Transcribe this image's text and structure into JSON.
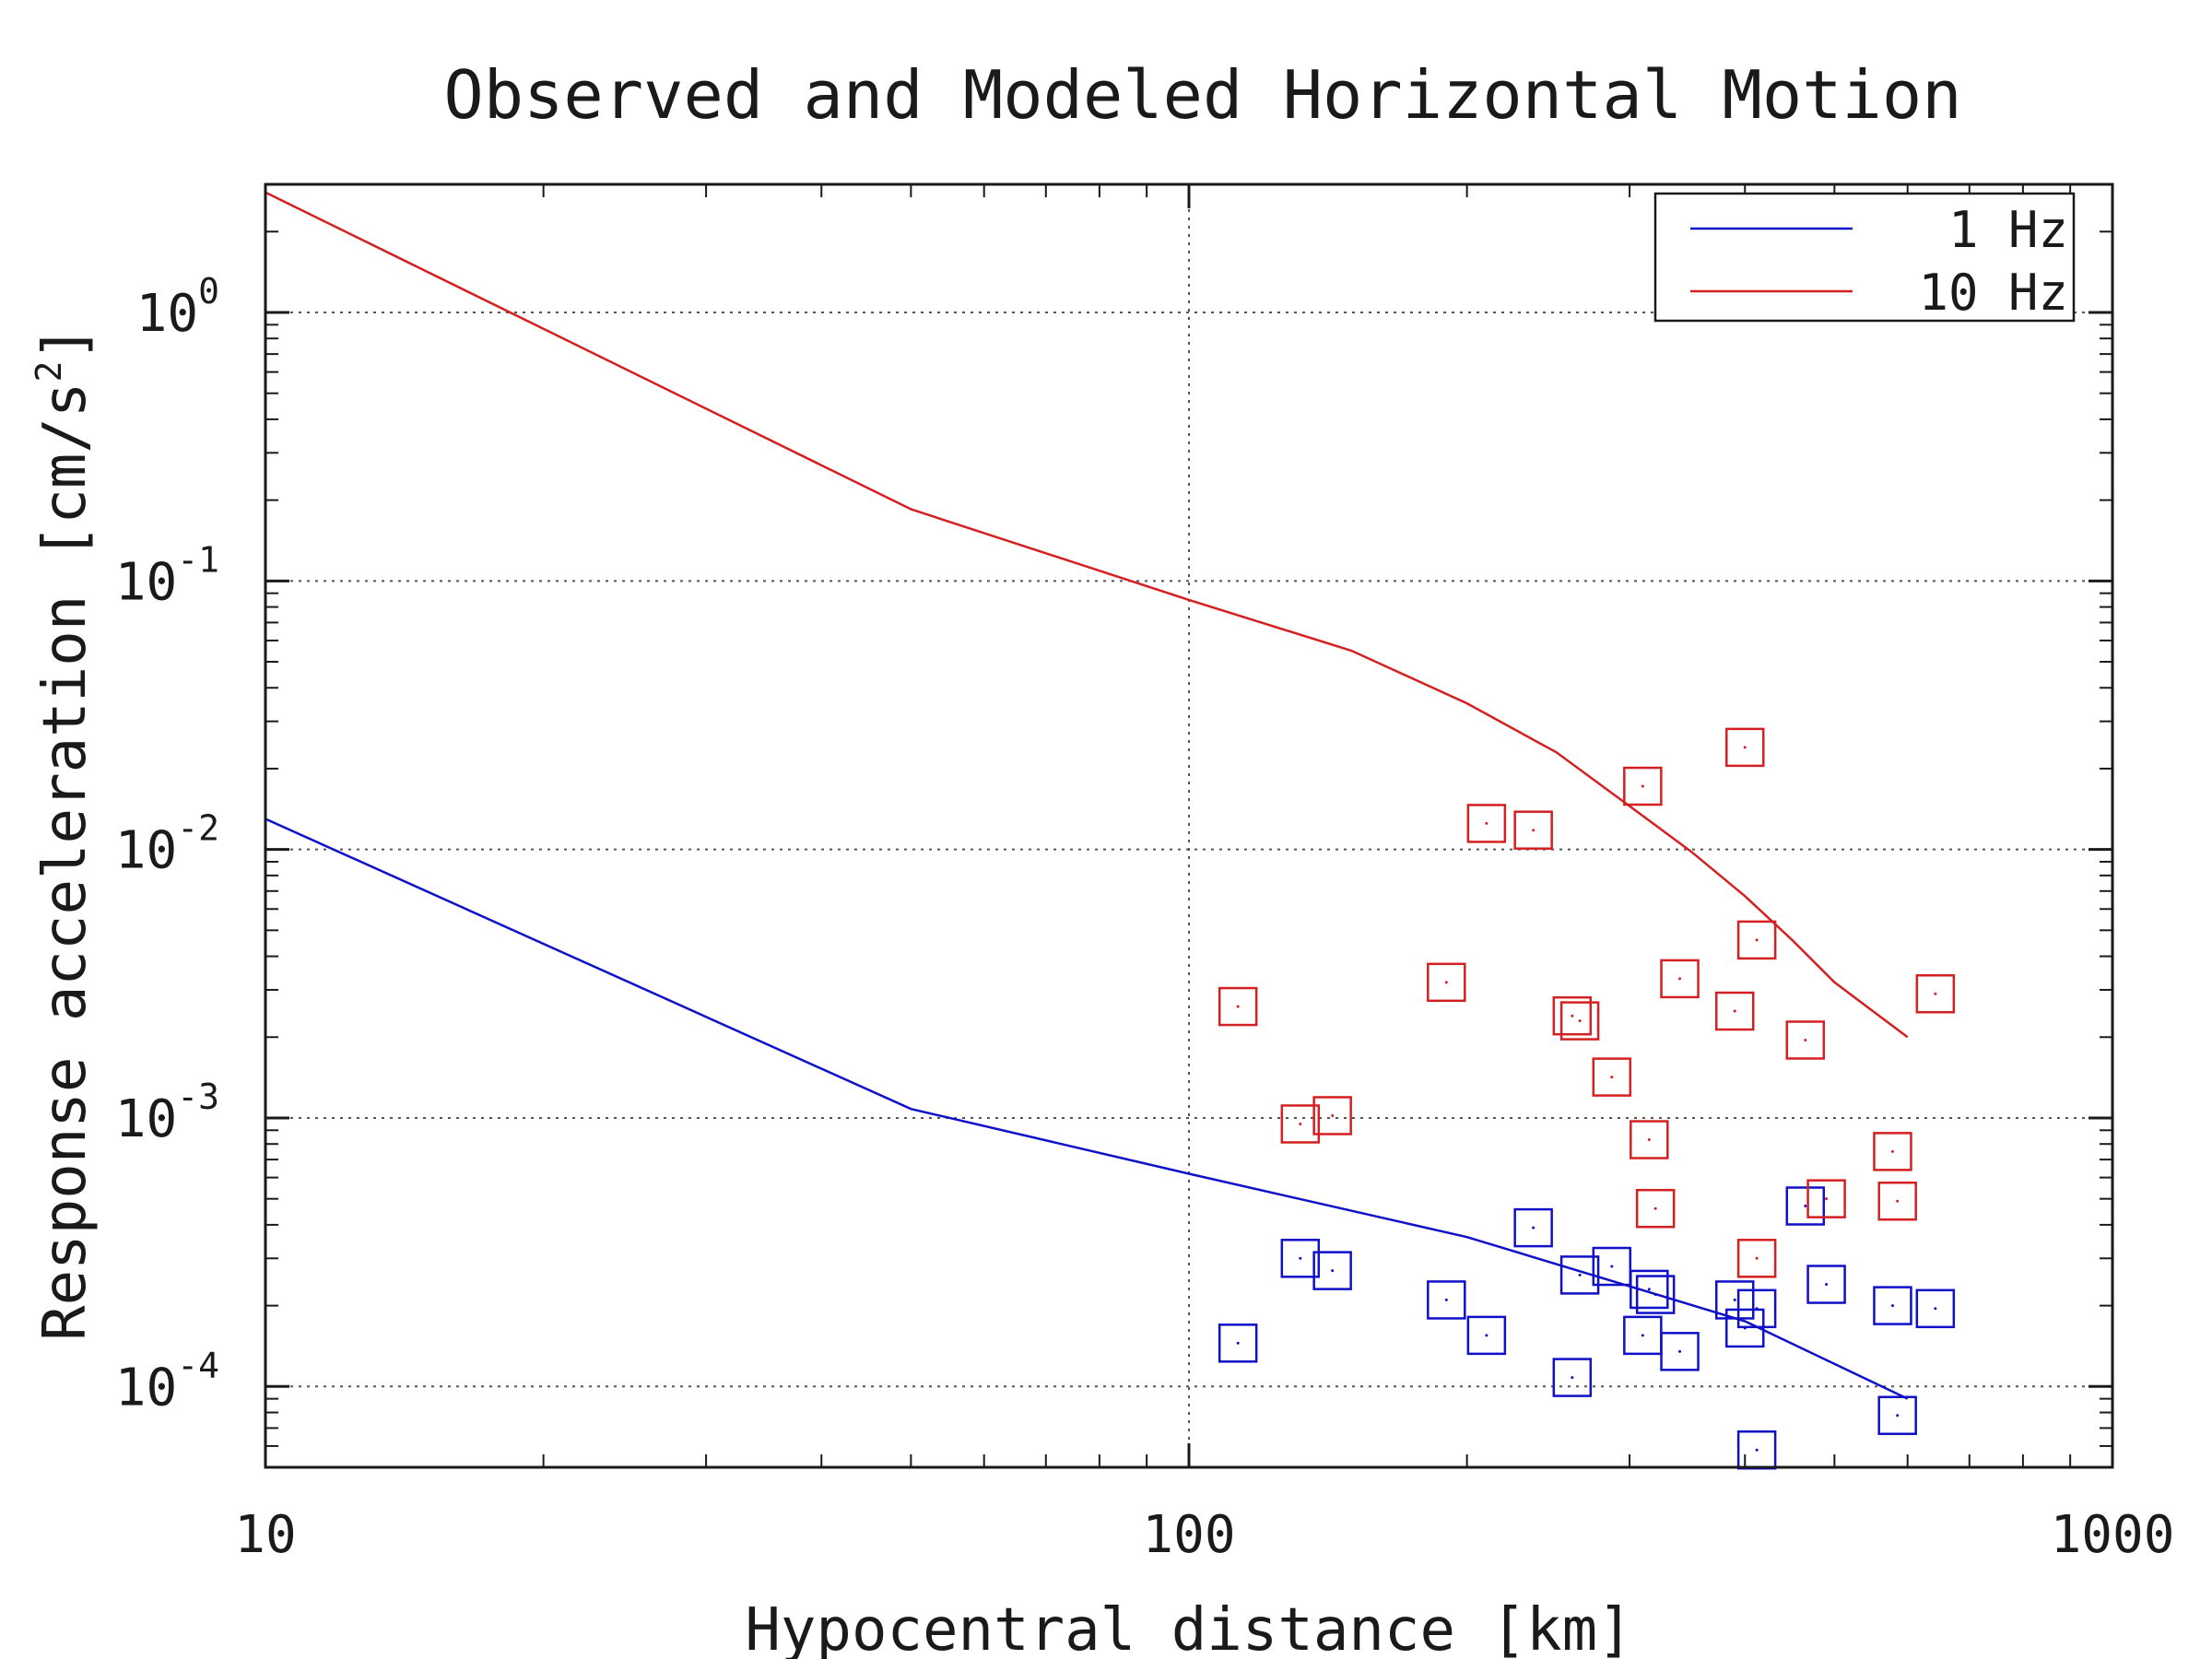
{
  "chart_data": {
    "type": "scatter",
    "title": "Observed and Modeled Horizontal Motion",
    "xlabel": "Hypocentral distance [km]",
    "ylabel": "Response acceleration [cm/s",
    "ylabel_superscript": "2",
    "ylabel_close": "]",
    "xscale": "log",
    "yscale": "log",
    "xlim": [
      10,
      1000
    ],
    "ylim": [
      5e-05,
      3
    ],
    "grid": true,
    "legend_position": "top-right",
    "x_ticks": [
      {
        "value": 10,
        "label": "10"
      },
      {
        "value": 100,
        "label": "100"
      },
      {
        "value": 1000,
        "label": "1000"
      }
    ],
    "y_ticks": [
      {
        "value": 1,
        "base": "10",
        "exp": "0"
      },
      {
        "value": 0.1,
        "base": "10",
        "exp": "-1"
      },
      {
        "value": 0.01,
        "base": "10",
        "exp": "-2"
      },
      {
        "value": 0.001,
        "base": "10",
        "exp": "-3"
      },
      {
        "value": 0.0001,
        "base": "10",
        "exp": "-4"
      }
    ],
    "series": [
      {
        "name": "1 Hz",
        "color": "#1010c8",
        "model_line": [
          [
            10,
            0.013
          ],
          [
            50,
            0.00108
          ],
          [
            100,
            0.00062
          ],
          [
            200,
            0.00036
          ],
          [
            400,
            0.000175
          ],
          [
            600,
            9e-05
          ]
        ],
        "observed": [
          [
            113,
            0.000145
          ],
          [
            132,
            0.0003
          ],
          [
            143,
            0.00027
          ],
          [
            190,
            0.00021
          ],
          [
            210,
            0.000155
          ],
          [
            236,
            0.00039
          ],
          [
            260,
            0.000108
          ],
          [
            265,
            0.00026
          ],
          [
            287,
            0.00028
          ],
          [
            310,
            0.000155
          ],
          [
            315,
            0.00023
          ],
          [
            320,
            0.00022
          ],
          [
            340,
            0.000135
          ],
          [
            390,
            0.00021
          ],
          [
            400,
            0.000165
          ],
          [
            412,
            0.000195
          ],
          [
            412,
            5.8e-05
          ],
          [
            465,
            0.00047
          ],
          [
            490,
            0.00024
          ],
          [
            578,
            0.0002
          ],
          [
            585,
            7.8e-05
          ],
          [
            643,
            0.000195
          ]
        ]
      },
      {
        "name": "10 Hz",
        "color": "#d42020",
        "model_line": [
          [
            10,
            2.8
          ],
          [
            50,
            0.185
          ],
          [
            100,
            0.085
          ],
          [
            150,
            0.055
          ],
          [
            200,
            0.035
          ],
          [
            250,
            0.023
          ],
          [
            300,
            0.0145
          ],
          [
            350,
            0.0098
          ],
          [
            400,
            0.0067
          ],
          [
            450,
            0.0046
          ],
          [
            500,
            0.0032
          ],
          [
            600,
            0.002
          ]
        ],
        "observed": [
          [
            113,
            0.0026
          ],
          [
            132,
            0.00095
          ],
          [
            143,
            0.00102
          ],
          [
            190,
            0.0032
          ],
          [
            210,
            0.0125
          ],
          [
            236,
            0.0118
          ],
          [
            260,
            0.0024
          ],
          [
            265,
            0.0023
          ],
          [
            287,
            0.00142
          ],
          [
            310,
            0.0172
          ],
          [
            315,
            0.00083
          ],
          [
            320,
            0.00046
          ],
          [
            340,
            0.0033
          ],
          [
            390,
            0.0025
          ],
          [
            400,
            0.024
          ],
          [
            412,
            0.0046
          ],
          [
            412,
            0.0003
          ],
          [
            465,
            0.00195
          ],
          [
            490,
            0.0005
          ],
          [
            578,
            0.00075
          ],
          [
            585,
            0.00049
          ],
          [
            643,
            0.0029
          ]
        ]
      }
    ]
  }
}
